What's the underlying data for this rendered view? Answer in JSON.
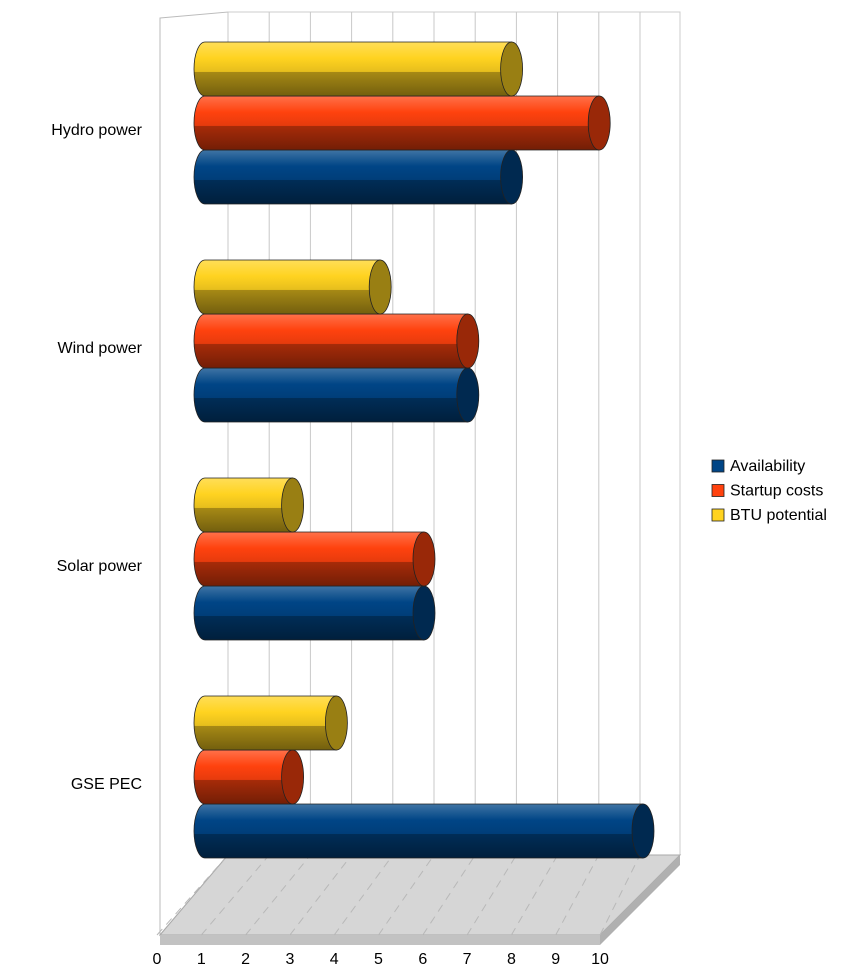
{
  "chart_data": {
    "type": "bar3d",
    "orientation": "horizontal",
    "categories": [
      "Hydro power",
      "Wind power",
      "Solar power",
      "GSE PEC"
    ],
    "series": [
      {
        "name": "Availability",
        "color": "#004586",
        "values": [
          7,
          6,
          5,
          10
        ]
      },
      {
        "name": "Startup costs",
        "color": "#ff420e",
        "values": [
          9,
          6,
          5,
          2
        ]
      },
      {
        "name": "BTU potential",
        "color": "#ffd320",
        "values": [
          7,
          4,
          2,
          3
        ]
      }
    ],
    "xlim": [
      0,
      10
    ],
    "xticks": [
      0,
      1,
      2,
      3,
      4,
      5,
      6,
      7,
      8,
      9,
      10
    ],
    "grid": true,
    "legend": "right"
  }
}
